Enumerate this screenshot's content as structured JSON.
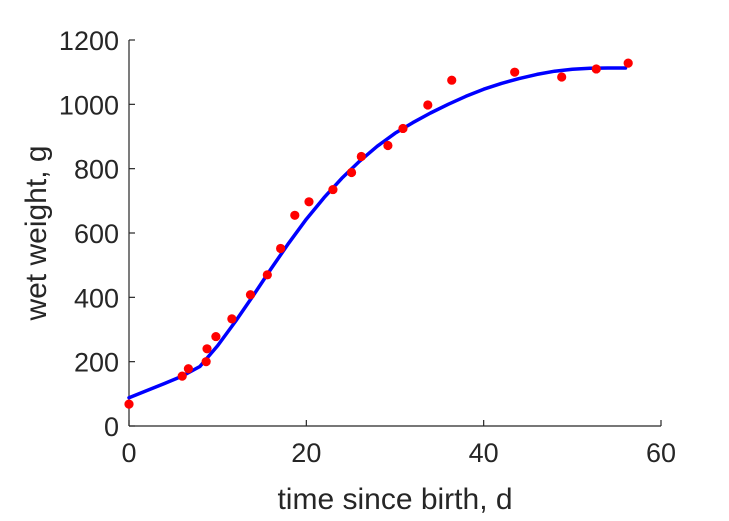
{
  "chart_data": {
    "type": "scatter",
    "title": "",
    "xlabel": "time since birth, d",
    "ylabel": "wet weight, g",
    "xlim": [
      0,
      60
    ],
    "ylim": [
      0,
      1200
    ],
    "xticks": [
      "0",
      "20",
      "40",
      "60"
    ],
    "yticks": [
      "0",
      "200",
      "400",
      "600",
      "800",
      "1000",
      "1200"
    ],
    "grid": false,
    "series": [
      {
        "kind": "scatter",
        "color": "#ff0000",
        "x": [
          0,
          6,
          6.7,
          8.7,
          8.8,
          9.8,
          11.6,
          13.7,
          15.6,
          17.1,
          18.7,
          20.3,
          23.0,
          25.1,
          26.2,
          29.2,
          30.9,
          33.7,
          36.4,
          43.5,
          48.8,
          52.7,
          56.3
        ],
        "y": [
          68,
          155,
          178,
          200,
          240,
          278,
          333,
          408,
          470,
          552,
          655,
          697,
          735,
          788,
          838,
          872,
          925,
          998,
          1075,
          1100,
          1085,
          1110,
          1128
        ]
      },
      {
        "kind": "line",
        "color": "#0000ff",
        "x": [
          0,
          2,
          4,
          6,
          8,
          10,
          12,
          14,
          16,
          18,
          20,
          22,
          24,
          26,
          28,
          30,
          32,
          34,
          36,
          38,
          40,
          42,
          44,
          46,
          48,
          50,
          52,
          54,
          56
        ],
        "y": [
          88,
          110,
          132,
          155,
          185,
          250,
          325,
          405,
          488,
          568,
          643,
          710,
          770,
          823,
          870,
          910,
          943,
          973,
          1000,
          1025,
          1047,
          1065,
          1080,
          1093,
          1103,
          1109,
          1112,
          1113,
          1113
        ]
      }
    ]
  }
}
